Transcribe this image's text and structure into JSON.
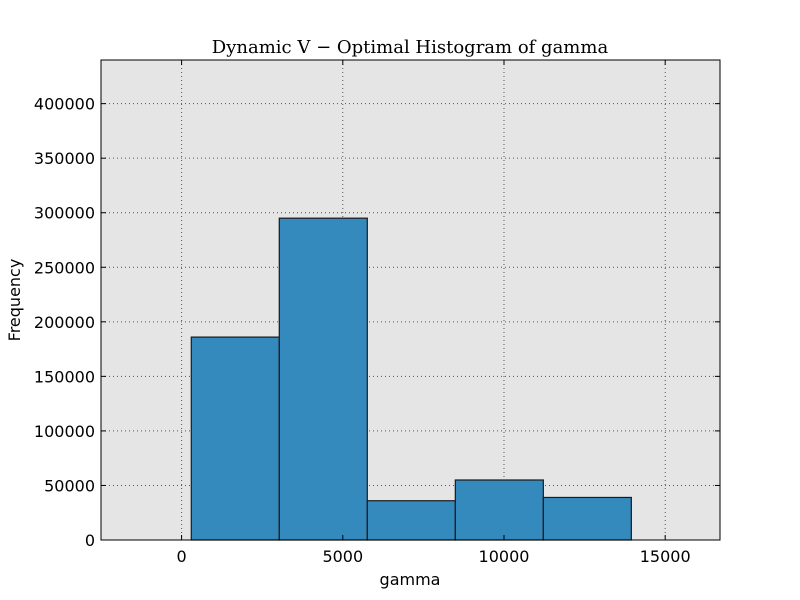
{
  "chart_data": {
    "type": "bar",
    "title": "Dynamic V − Optimal Histogram of gamma",
    "xlabel": "gamma",
    "ylabel": "Frequency",
    "xlim": [
      -2500,
      16700
    ],
    "ylim": [
      0,
      440000
    ],
    "x_ticks": [
      0,
      5000,
      10000,
      15000
    ],
    "y_ticks": [
      0,
      50000,
      100000,
      150000,
      200000,
      250000,
      300000,
      350000,
      400000
    ],
    "grid": true,
    "bins": [
      {
        "x0": 300,
        "x1": 3030,
        "value": 186000
      },
      {
        "x0": 3030,
        "x1": 5760,
        "value": 295000
      },
      {
        "x0": 5760,
        "x1": 8490,
        "value": 36000
      },
      {
        "x0": 8490,
        "x1": 11220,
        "value": 55000
      },
      {
        "x0": 11220,
        "x1": 13950,
        "value": 39000
      }
    ],
    "colors": {
      "bar_fill": "#348abd",
      "bar_stroke": "#1a1a1a",
      "plot_bg": "#e5e5e5",
      "grid": "#555555"
    }
  }
}
